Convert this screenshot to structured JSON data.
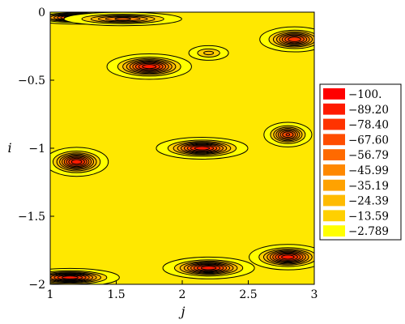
{
  "chart_data": {
    "type": "heatmap",
    "subtype": "filled-contour",
    "title": "",
    "xlabel": "j",
    "ylabel": "i",
    "xlim": [
      1,
      3
    ],
    "ylim": [
      -2,
      0
    ],
    "x_ticks": [
      1,
      1.5,
      2,
      2.5,
      3
    ],
    "x_tick_labels": [
      "1",
      "1.5",
      "2",
      "2.5",
      "3"
    ],
    "y_ticks": [
      0,
      -0.5,
      -1,
      -1.5,
      -2
    ],
    "y_tick_labels": [
      "0",
      "-0.5",
      "-1",
      "-1.5",
      "-2"
    ],
    "grid": false,
    "legend_position": "right",
    "levels": [
      {
        "label": "-100.",
        "value": -100.0,
        "color": "#ff0000"
      },
      {
        "label": "-89.20",
        "value": -89.2,
        "color": "#ff1a00"
      },
      {
        "label": "-78.40",
        "value": -78.4,
        "color": "#ff3300"
      },
      {
        "label": "-67.60",
        "value": -67.6,
        "color": "#ff4d00"
      },
      {
        "label": "-56.79",
        "value": -56.79,
        "color": "#ff6a00"
      },
      {
        "label": "-45.99",
        "value": -45.99,
        "color": "#ff8800"
      },
      {
        "label": "-35.19",
        "value": -35.19,
        "color": "#ffa200"
      },
      {
        "label": "-24.39",
        "value": -24.39,
        "color": "#ffbb00"
      },
      {
        "label": "-13.59",
        "value": -13.59,
        "color": "#ffd000"
      },
      {
        "label": "-2.789",
        "value": -2.789,
        "color": "#ffff00"
      }
    ],
    "background_color": "#ffe800",
    "wells": [
      {
        "j": 1.2,
        "i": -0.04,
        "depth": -98,
        "sj": 0.14,
        "si": 0.018
      },
      {
        "j": 1.55,
        "i": -0.05,
        "depth": -60,
        "sj": 0.18,
        "si": 0.02
      },
      {
        "j": 2.2,
        "i": -0.3,
        "depth": -28,
        "sj": 0.07,
        "si": 0.025
      },
      {
        "j": 2.85,
        "i": -0.2,
        "depth": -88,
        "sj": 0.1,
        "si": 0.035
      },
      {
        "j": 1.75,
        "i": -0.4,
        "depth": -98,
        "sj": 0.12,
        "si": 0.035
      },
      {
        "j": 1.2,
        "i": -1.1,
        "depth": -98,
        "sj": 0.09,
        "si": 0.04
      },
      {
        "j": 2.15,
        "i": -1.0,
        "depth": -98,
        "sj": 0.13,
        "si": 0.03
      },
      {
        "j": 2.8,
        "i": -0.9,
        "depth": -80,
        "sj": 0.07,
        "si": 0.035
      },
      {
        "j": 2.2,
        "i": -1.88,
        "depth": -98,
        "sj": 0.13,
        "si": 0.03
      },
      {
        "j": 2.8,
        "i": -1.8,
        "depth": -98,
        "sj": 0.11,
        "si": 0.035
      },
      {
        "j": 1.15,
        "i": -1.95,
        "depth": -98,
        "sj": 0.14,
        "si": 0.025
      }
    ]
  }
}
